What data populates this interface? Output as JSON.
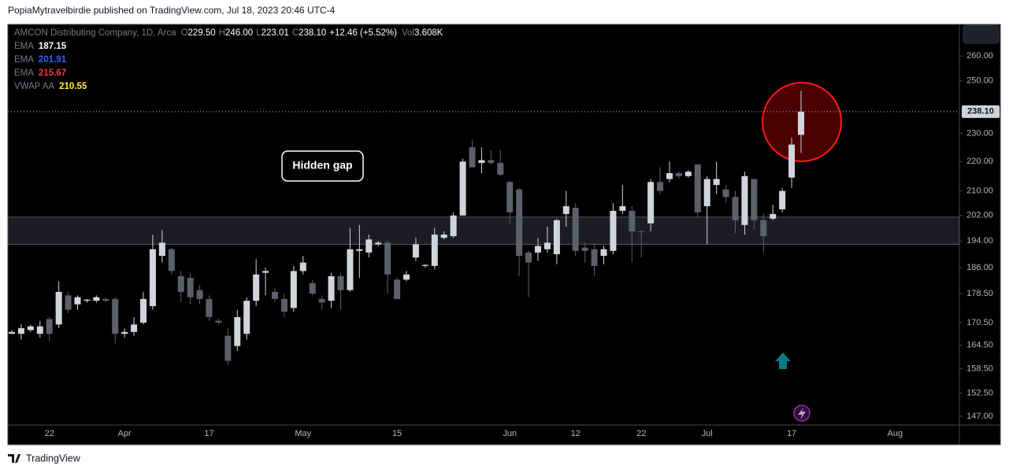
{
  "header": "PopiaMytravelbirdie published on TradingView.com, Jul 18, 2023 20:46 UTC-4",
  "footer": "TradingView",
  "chart_data": {
    "type": "candlestick",
    "symbol": "AMCON Distributing Company, 1D, Arca",
    "quote": [
      {
        "key": "O",
        "value": "229.50"
      },
      {
        "key": "H",
        "value": "246.00"
      },
      {
        "key": "L",
        "value": "223.01"
      },
      {
        "key": "C",
        "value": "238.10"
      }
    ],
    "change": "+12.46 (+5.52%)",
    "volume": {
      "key": "Vol",
      "value": "3.608K"
    },
    "indicators": [
      {
        "name": "EMA",
        "value": "187.15",
        "color": "#ffffff"
      },
      {
        "name": "EMA",
        "value": "201.91",
        "color": "#2962ff"
      },
      {
        "name": "EMA",
        "value": "215.67",
        "color": "#f23645"
      },
      {
        "name": "VWAP AA",
        "value": "210.55",
        "color": "#ffeb3b"
      }
    ],
    "annotation": "Hidden gap",
    "last_price": {
      "value": 238.1,
      "label": "238.10"
    },
    "band": [
      193,
      201.5
    ],
    "up_color": "#d1d4dc",
    "down_color": "#5d606b",
    "log_scale": true,
    "ylim": [
      145,
      273
    ],
    "yticks": [
      {
        "value": 260,
        "label": "260.00"
      },
      {
        "value": 250,
        "label": "250.00"
      },
      {
        "value": 230,
        "label": "230.00"
      },
      {
        "value": 220,
        "label": "220.00"
      },
      {
        "value": 210,
        "label": "210.00"
      },
      {
        "value": 202,
        "label": "202.00"
      },
      {
        "value": 194,
        "label": "194.00"
      },
      {
        "value": 186,
        "label": "186.00"
      },
      {
        "value": 178.5,
        "label": "178.50"
      },
      {
        "value": 170.5,
        "label": "170.50"
      },
      {
        "value": 164.5,
        "label": "164.50"
      },
      {
        "value": 158.5,
        "label": "158.50"
      },
      {
        "value": 152.5,
        "label": "152.50"
      },
      {
        "value": 147,
        "label": "147.00"
      }
    ],
    "categories": [
      null,
      null,
      null,
      null,
      "22",
      null,
      null,
      null,
      null,
      null,
      null,
      null,
      "Apr",
      null,
      null,
      null,
      null,
      null,
      null,
      null,
      null,
      "17",
      null,
      null,
      null,
      null,
      null,
      null,
      null,
      null,
      null,
      "May",
      null,
      null,
      null,
      null,
      null,
      null,
      null,
      null,
      null,
      "15",
      null,
      null,
      null,
      null,
      null,
      null,
      null,
      null,
      null,
      null,
      null,
      "Jun",
      null,
      null,
      null,
      null,
      null,
      null,
      "12",
      null,
      null,
      null,
      null,
      null,
      null,
      "22",
      null,
      null,
      null,
      null,
      null,
      null,
      "Jul",
      null,
      null,
      null,
      null,
      null,
      null,
      null,
      null,
      "17",
      null,
      null,
      null,
      null,
      null,
      null,
      null,
      null,
      null,
      null,
      "Aug",
      null,
      null,
      null,
      null,
      null,
      null
    ],
    "open": [
      167.5,
      167.5,
      168.5,
      167.5,
      171.5,
      170,
      178,
      175.5,
      176.5,
      176.5,
      177,
      177,
      167.5,
      168,
      170.5,
      175,
      189.5,
      191.5,
      183.5,
      183,
      179.5,
      177,
      171,
      167,
      164.3,
      167.5,
      176.5,
      184.5,
      179,
      177,
      174.5,
      185,
      181.5,
      177,
      176.5,
      183.5,
      179.5,
      191,
      190.5,
      193,
      193.5,
      182.5,
      182.5,
      189,
      186.5,
      186.5,
      195,
      195.5,
      202,
      225,
      219.5,
      220.5,
      219.5,
      213,
      210.5,
      190.5,
      190.5,
      191.5,
      190,
      202.5,
      204.5,
      192,
      191.5,
      189.5,
      191,
      203.5,
      203.5,
      197,
      199.5,
      213,
      214,
      216,
      215,
      219,
      205,
      212,
      210.5,
      208,
      199,
      214,
      200.5,
      201,
      204,
      214.5,
      229.5,
      null,
      null,
      null,
      null,
      null,
      null,
      null,
      null,
      null,
      null,
      null,
      null,
      null,
      null,
      null,
      null
    ],
    "high": [
      168.5,
      170,
      170,
      171,
      172,
      182,
      179,
      178,
      177,
      178,
      177.5,
      177.5,
      169,
      172,
      179,
      196,
      197.5,
      192,
      185,
      184.5,
      181,
      178,
      171.5,
      169,
      174,
      177.5,
      188.5,
      186,
      180,
      178.5,
      186.5,
      189.5,
      182.5,
      178,
      184.5,
      184.5,
      198,
      199,
      196,
      194,
      194,
      183,
      185,
      195,
      187,
      198,
      197,
      203,
      221,
      227.5,
      225,
      224,
      224,
      213.5,
      211,
      191,
      195,
      198.5,
      201,
      210,
      206,
      193.5,
      193,
      192.5,
      206,
      212,
      205,
      197.5,
      214,
      218,
      220,
      216.5,
      217,
      219,
      215,
      220,
      212,
      210,
      216.5,
      214,
      202.5,
      205.5,
      211,
      228.5,
      246,
      null,
      null,
      null,
      null,
      null,
      null,
      null,
      null,
      null,
      null,
      null,
      null,
      null,
      null,
      null,
      null
    ],
    "low": [
      167.5,
      166,
      168,
      166.5,
      165.5,
      169,
      173,
      174,
      176,
      176,
      176,
      165,
      166.5,
      167,
      170,
      174,
      187.5,
      184,
      176,
      175.5,
      175.5,
      171,
      170,
      159.5,
      163,
      166,
      175,
      178,
      176,
      172,
      173.5,
      184,
      178,
      174,
      174.5,
      174,
      179,
      183,
      189,
      192.5,
      178.5,
      177,
      182,
      188,
      186,
      185.5,
      194.5,
      195,
      202,
      218,
      216,
      219,
      215,
      199.5,
      183.5,
      177.5,
      188,
      190.5,
      187,
      198.5,
      189.5,
      187.5,
      183.5,
      187,
      190,
      202.5,
      187.5,
      189,
      197,
      209,
      213,
      214,
      214.5,
      201.5,
      193,
      209,
      206,
      196.5,
      196,
      197.5,
      190.5,
      200.5,
      203,
      211,
      223.01,
      null,
      null,
      null,
      null,
      null,
      null,
      null,
      null,
      null,
      null,
      null,
      null,
      null,
      null,
      null,
      null
    ],
    "close": [
      168,
      169,
      169.5,
      169.5,
      167.5,
      179,
      174,
      177.5,
      176.8,
      177.5,
      176.5,
      167.5,
      168,
      170,
      177,
      191.5,
      193.5,
      185,
      179,
      177.5,
      177,
      172,
      170.5,
      160.5,
      172,
      176.5,
      184,
      185,
      177,
      173.5,
      185,
      187.5,
      178.5,
      176,
      183.5,
      179.5,
      191.5,
      191.5,
      194.5,
      193.5,
      184,
      177,
      184,
      193,
      186.8,
      196,
      196,
      202,
      220,
      218,
      220.5,
      219.5,
      215.5,
      203,
      189.5,
      187.5,
      192.5,
      193.5,
      200.5,
      205,
      191,
      191,
      186.5,
      191.5,
      203.5,
      205,
      197,
      196.8,
      213,
      210,
      216,
      215,
      216.5,
      203,
      214,
      214,
      208,
      200.5,
      215,
      200.5,
      195.5,
      202.5,
      210,
      226,
      238.1,
      null,
      null,
      null,
      null,
      null,
      null,
      null,
      null,
      null,
      null,
      null,
      null,
      null,
      null,
      null,
      null
    ]
  }
}
